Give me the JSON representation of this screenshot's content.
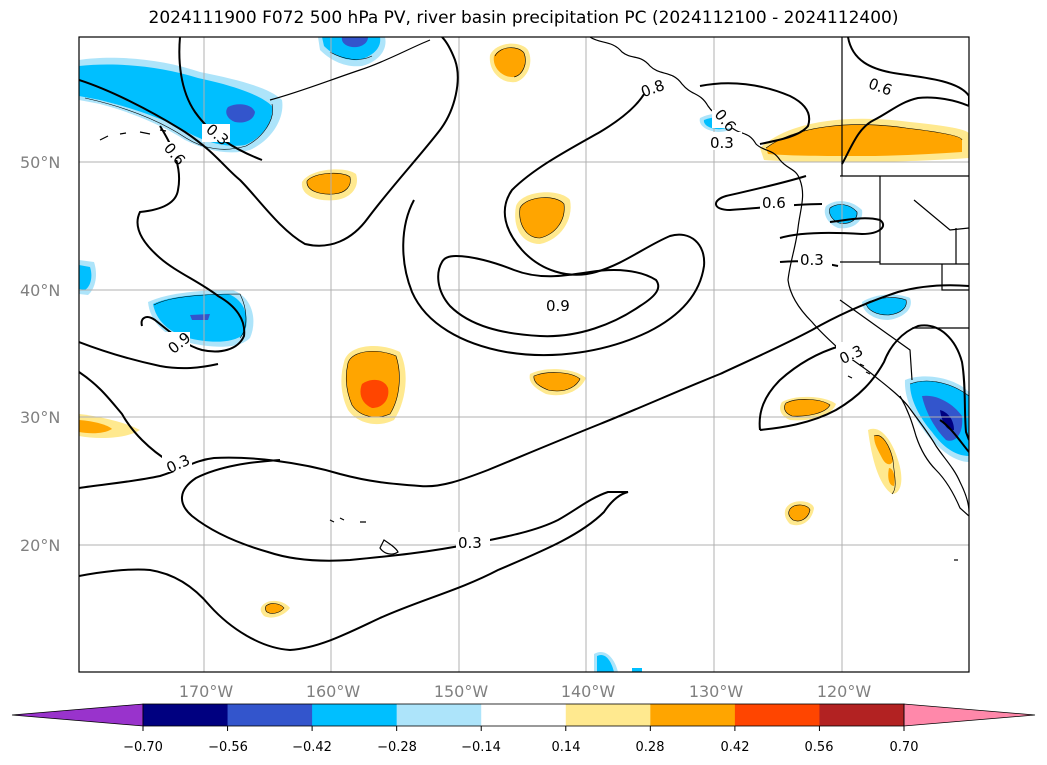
{
  "title": "2024111900 F072 500 hPa PV, river basin precipitation PC (2024112100 - 2024112400)",
  "map": {
    "extent": {
      "lon": [
        -180,
        -110
      ],
      "lat": [
        10,
        60
      ]
    },
    "lat_labels": [
      "50°N",
      "40°N",
      "30°N",
      "20°N"
    ],
    "lon_labels": [
      "170°W",
      "160°W",
      "150°W",
      "140°W",
      "130°W",
      "120°W"
    ],
    "gridlines": true,
    "contour_labels": [
      "0.3",
      "0.6",
      "0.9",
      "0.3",
      "0.6",
      "0.9",
      "0.3",
      "0.3",
      "0.6",
      "0.3",
      "0.3",
      "0.6",
      "0.8",
      "0.3"
    ],
    "colors": {
      "purple": "#9933cc",
      "navy": "#000080",
      "royal": "#3355cc",
      "deepsky": "#00bfff",
      "lightblue": "#ade4fa",
      "white": "#ffffff",
      "pale_yellow": "#ffe98f",
      "orange": "#ffa500",
      "red_orange": "#ff4500",
      "firebrick": "#b22222",
      "pink": "#ff88aa"
    }
  },
  "colorbar": {
    "tick_labels": [
      "−0.70",
      "−0.56",
      "−0.42",
      "−0.28",
      "−0.14",
      "0.14",
      "0.28",
      "0.42",
      "0.56",
      "0.70"
    ],
    "segment_colors": [
      "#9933cc",
      "#000080",
      "#3355cc",
      "#00bfff",
      "#ade4fa",
      "#ffffff",
      "#ffe98f",
      "#ffa500",
      "#ff4500",
      "#b22222",
      "#ff88aa"
    ],
    "extend": "both"
  }
}
